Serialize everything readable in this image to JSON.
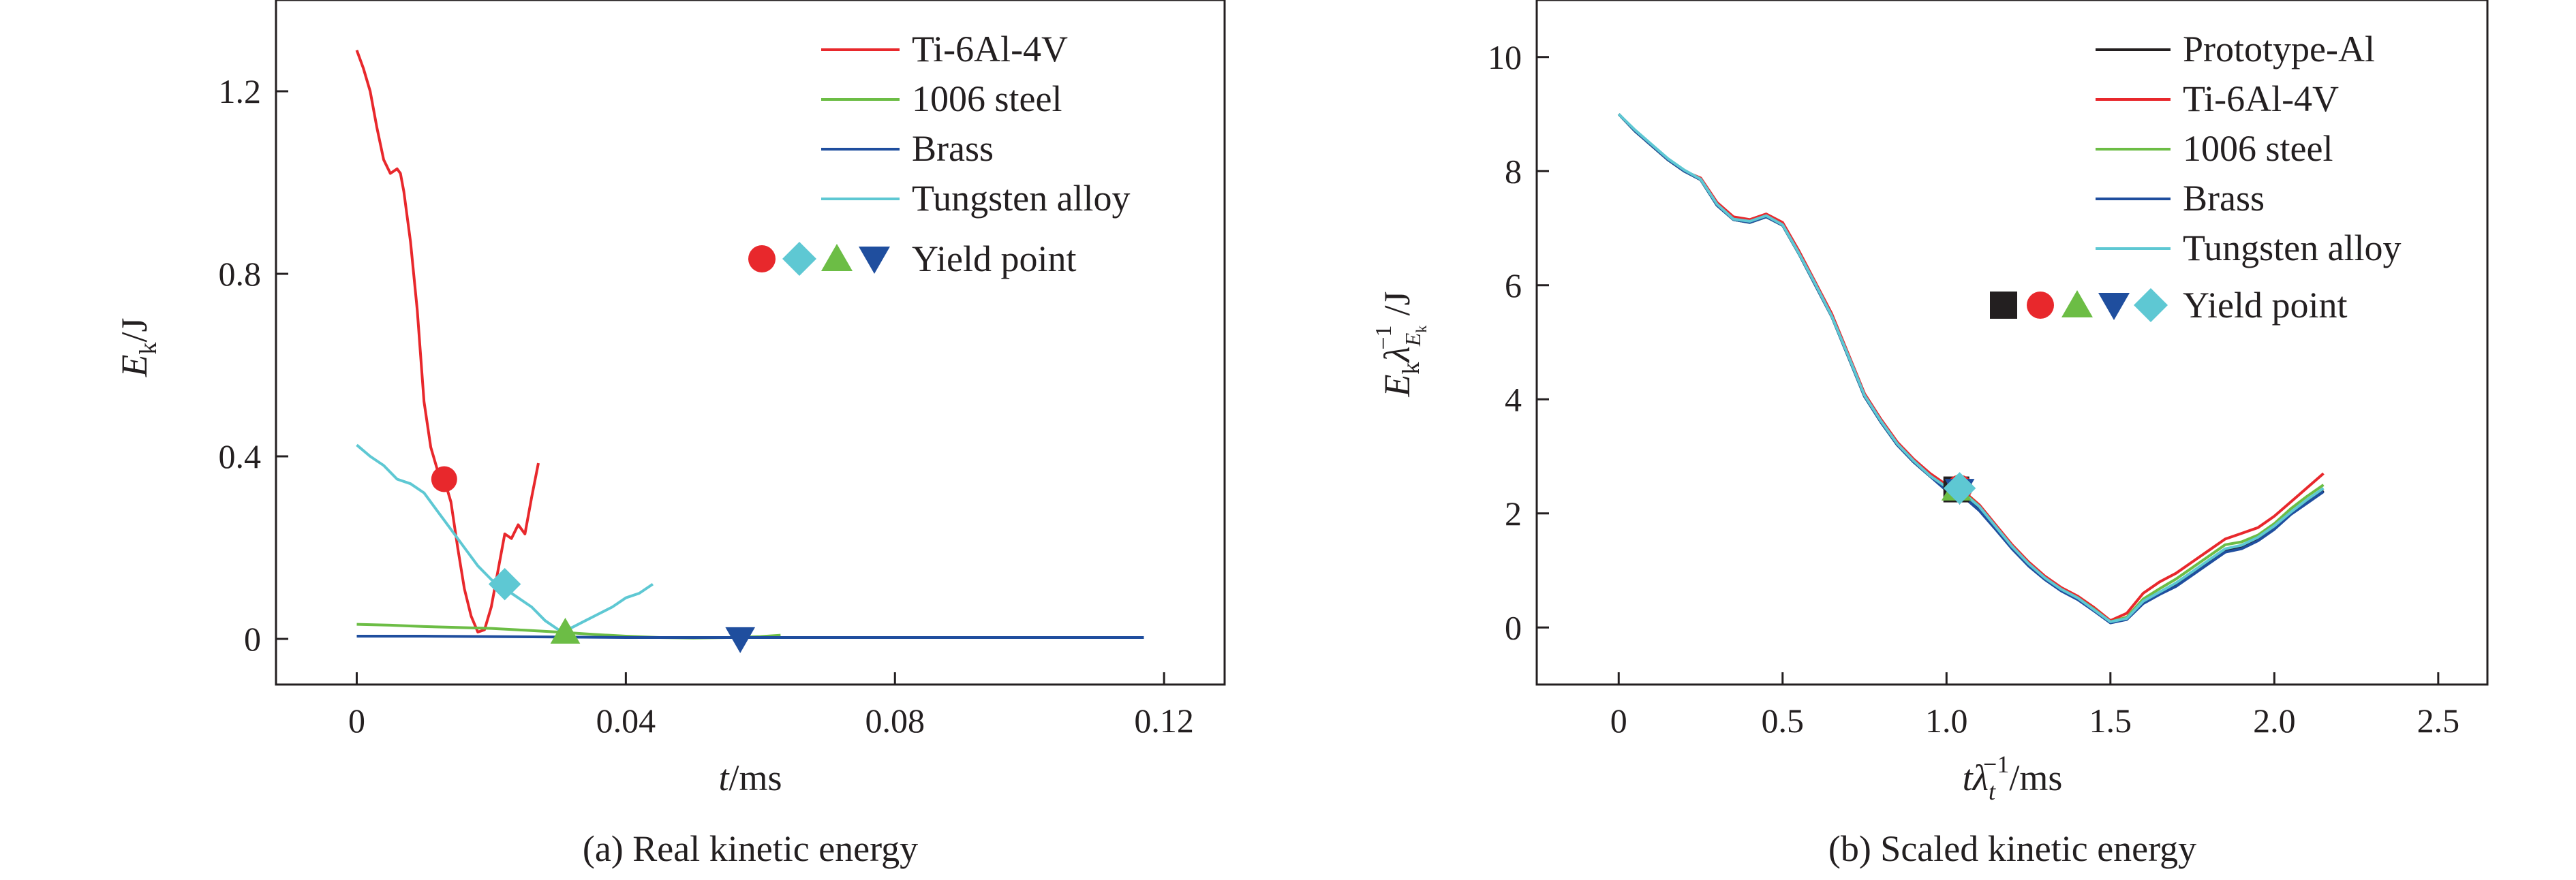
{
  "chart_data": [
    {
      "type": "line",
      "caption": "(a) Real kinetic energy",
      "xlabel": {
        "var": "t",
        "unit": "/ms"
      },
      "ylabel": {
        "var": "E",
        "sub": "k",
        "unit": "/J"
      },
      "xlim": [
        -0.012,
        0.129
      ],
      "ylim": [
        -0.1,
        1.4
      ],
      "xticks": [
        0,
        0.04,
        0.08,
        0.12
      ],
      "xtick_labels": [
        "0",
        "0.04",
        "0.08",
        "0.12"
      ],
      "yticks": [
        0,
        0.4,
        0.8,
        1.2
      ],
      "ytick_labels": [
        "0",
        "0.4",
        "0.8",
        "1.2"
      ],
      "grid": false,
      "legend_position": "top-right",
      "series": [
        {
          "name": "Ti-6Al-4V",
          "color": "#e8282c",
          "x": [
            0.0,
            0.001,
            0.002,
            0.003,
            0.004,
            0.005,
            0.006,
            0.0065,
            0.007,
            0.008,
            0.009,
            0.01,
            0.011,
            0.012,
            0.013,
            0.014,
            0.015,
            0.016,
            0.017,
            0.018,
            0.019,
            0.02,
            0.021,
            0.022,
            0.023,
            0.024,
            0.025,
            0.026,
            0.027
          ],
          "y": [
            1.29,
            1.25,
            1.2,
            1.12,
            1.05,
            1.02,
            1.03,
            1.02,
            0.98,
            0.87,
            0.72,
            0.52,
            0.42,
            0.37,
            0.35,
            0.3,
            0.2,
            0.11,
            0.05,
            0.015,
            0.02,
            0.07,
            0.15,
            0.23,
            0.22,
            0.25,
            0.23,
            0.31,
            0.385
          ]
        },
        {
          "name": "1006 steel",
          "color": "#6cbd45",
          "x": [
            0.0,
            0.005,
            0.01,
            0.015,
            0.02,
            0.025,
            0.03,
            0.035,
            0.04,
            0.045,
            0.05,
            0.055,
            0.06,
            0.063
          ],
          "y": [
            0.032,
            0.03,
            0.027,
            0.025,
            0.023,
            0.019,
            0.015,
            0.01,
            0.006,
            0.003,
            0.002,
            0.003,
            0.005,
            0.008
          ]
        },
        {
          "name": "Brass",
          "color": "#1f4e9e",
          "x": [
            0.0,
            0.01,
            0.02,
            0.03,
            0.04,
            0.05,
            0.06,
            0.07,
            0.08,
            0.09,
            0.1,
            0.117
          ],
          "y": [
            0.006,
            0.006,
            0.005,
            0.004,
            0.003,
            0.003,
            0.003,
            0.003,
            0.003,
            0.003,
            0.003,
            0.003
          ]
        },
        {
          "name": "Tungsten alloy",
          "color": "#5ec8d3",
          "x": [
            0.0,
            0.002,
            0.004,
            0.006,
            0.008,
            0.01,
            0.012,
            0.014,
            0.016,
            0.018,
            0.02,
            0.022,
            0.024,
            0.026,
            0.028,
            0.03,
            0.032,
            0.034,
            0.036,
            0.038,
            0.04,
            0.042,
            0.044
          ],
          "y": [
            0.425,
            0.4,
            0.38,
            0.35,
            0.34,
            0.32,
            0.28,
            0.24,
            0.2,
            0.16,
            0.13,
            0.11,
            0.09,
            0.07,
            0.04,
            0.02,
            0.025,
            0.04,
            0.055,
            0.07,
            0.09,
            0.1,
            0.12
          ]
        }
      ],
      "legend_yield_label": "Yield point",
      "yield_points": [
        {
          "series": "Ti-6Al-4V",
          "marker": "circle",
          "x": 0.013,
          "y": 0.35
        },
        {
          "series": "Tungsten alloy",
          "marker": "diamond",
          "x": 0.022,
          "y": 0.12
        },
        {
          "series": "1006 steel",
          "marker": "triangle-up",
          "x": 0.031,
          "y": 0.015
        },
        {
          "series": "Brass",
          "marker": "triangle-down",
          "x": 0.057,
          "y": 0.0
        }
      ]
    },
    {
      "type": "line",
      "caption": "(b) Scaled kinetic energy",
      "xlabel": {
        "var": "t",
        "lambda": "λ",
        "sub": "t",
        "sup": "−1",
        "unit": "/ms"
      },
      "ylabel": {
        "var": "E",
        "sub": "k",
        "lambda": "λ",
        "lsub": "E",
        "lsubsub": "k",
        "sup": "−1",
        "unit": "/J"
      },
      "xlim": [
        -0.25,
        2.65
      ],
      "ylim": [
        -1.0,
        11.0
      ],
      "xticks": [
        0,
        0.5,
        1.0,
        1.5,
        2.0,
        2.5
      ],
      "xtick_labels": [
        "0",
        "0.5",
        "1.0",
        "1.5",
        "2.0",
        "2.5"
      ],
      "yticks": [
        0,
        2,
        4,
        6,
        8,
        10
      ],
      "ytick_labels": [
        "0",
        "2",
        "4",
        "6",
        "8",
        "10"
      ],
      "grid": false,
      "legend_position": "top-right",
      "series": [
        {
          "name": "Prototype-Al",
          "color": "#231f20",
          "x": [
            0.0,
            0.05,
            0.1,
            0.15,
            0.2,
            0.25,
            0.3,
            0.35,
            0.4,
            0.45,
            0.5,
            0.55,
            0.6,
            0.65,
            0.7,
            0.75,
            0.8,
            0.85,
            0.9,
            0.95,
            1.0,
            1.05,
            1.1,
            1.15,
            1.2,
            1.25,
            1.3,
            1.35,
            1.4,
            1.45,
            1.5,
            1.55,
            1.6,
            1.65,
            1.7,
            1.75,
            1.8,
            1.85,
            1.9,
            1.95,
            2.0,
            2.05,
            2.1,
            2.15
          ],
          "y": [
            9.0,
            8.7,
            8.45,
            8.2,
            8.0,
            7.85,
            7.4,
            7.15,
            7.1,
            7.2,
            7.05,
            6.55,
            6.0,
            5.45,
            4.75,
            4.05,
            3.6,
            3.2,
            2.9,
            2.65,
            2.45,
            2.35,
            2.1,
            1.75,
            1.4,
            1.1,
            0.85,
            0.65,
            0.5,
            0.3,
            0.1,
            0.15,
            0.45,
            0.6,
            0.75,
            0.95,
            1.15,
            1.35,
            1.4,
            1.55,
            1.75,
            2.0,
            2.2,
            2.4
          ]
        },
        {
          "name": "Ti-6Al-4V",
          "color": "#e8282c",
          "x": [
            0.0,
            0.05,
            0.1,
            0.15,
            0.2,
            0.25,
            0.3,
            0.35,
            0.4,
            0.45,
            0.5,
            0.55,
            0.6,
            0.65,
            0.7,
            0.75,
            0.8,
            0.85,
            0.9,
            0.95,
            1.0,
            1.05,
            1.1,
            1.15,
            1.2,
            1.25,
            1.3,
            1.35,
            1.4,
            1.45,
            1.5,
            1.55,
            1.6,
            1.65,
            1.7,
            1.75,
            1.8,
            1.85,
            1.9,
            1.95,
            2.0,
            2.05,
            2.1,
            2.15
          ],
          "y": [
            9.0,
            8.7,
            8.45,
            8.2,
            8.0,
            7.88,
            7.45,
            7.2,
            7.15,
            7.25,
            7.1,
            6.6,
            6.05,
            5.5,
            4.8,
            4.1,
            3.65,
            3.25,
            2.95,
            2.7,
            2.5,
            2.4,
            2.15,
            1.8,
            1.45,
            1.15,
            0.9,
            0.7,
            0.55,
            0.35,
            0.12,
            0.25,
            0.6,
            0.8,
            0.95,
            1.15,
            1.35,
            1.55,
            1.65,
            1.75,
            1.95,
            2.2,
            2.45,
            2.7
          ]
        },
        {
          "name": "1006 steel",
          "color": "#6cbd45",
          "x": [
            0.0,
            0.05,
            0.1,
            0.15,
            0.2,
            0.25,
            0.3,
            0.35,
            0.4,
            0.45,
            0.5,
            0.55,
            0.6,
            0.65,
            0.7,
            0.75,
            0.8,
            0.85,
            0.9,
            0.95,
            1.0,
            1.05,
            1.1,
            1.15,
            1.2,
            1.25,
            1.3,
            1.35,
            1.4,
            1.45,
            1.5,
            1.55,
            1.6,
            1.65,
            1.7,
            1.75,
            1.8,
            1.85,
            1.9,
            1.95,
            2.0,
            2.05,
            2.1,
            2.15
          ],
          "y": [
            9.0,
            8.7,
            8.45,
            8.2,
            8.0,
            7.85,
            7.4,
            7.15,
            7.1,
            7.2,
            7.05,
            6.55,
            6.0,
            5.45,
            4.75,
            4.05,
            3.6,
            3.2,
            2.9,
            2.65,
            2.45,
            2.38,
            2.12,
            1.77,
            1.42,
            1.12,
            0.87,
            0.67,
            0.52,
            0.32,
            0.1,
            0.18,
            0.5,
            0.68,
            0.85,
            1.05,
            1.25,
            1.45,
            1.5,
            1.62,
            1.82,
            2.08,
            2.3,
            2.5
          ]
        },
        {
          "name": "Brass",
          "color": "#1f4e9e",
          "x": [
            0.0,
            0.05,
            0.1,
            0.15,
            0.2,
            0.25,
            0.3,
            0.35,
            0.4,
            0.45,
            0.5,
            0.55,
            0.6,
            0.65,
            0.7,
            0.75,
            0.8,
            0.85,
            0.9,
            0.95,
            1.0,
            1.05,
            1.1,
            1.15,
            1.2,
            1.25,
            1.3,
            1.35,
            1.4,
            1.45,
            1.5,
            1.55,
            1.6,
            1.65,
            1.7,
            1.75,
            1.8,
            1.85,
            1.9,
            1.95,
            2.0,
            2.05,
            2.1,
            2.15
          ],
          "y": [
            9.0,
            8.7,
            8.45,
            8.2,
            8.0,
            7.85,
            7.4,
            7.15,
            7.1,
            7.2,
            7.05,
            6.55,
            6.0,
            5.45,
            4.75,
            4.05,
            3.6,
            3.2,
            2.9,
            2.65,
            2.4,
            2.3,
            2.05,
            1.72,
            1.38,
            1.08,
            0.84,
            0.64,
            0.49,
            0.29,
            0.08,
            0.14,
            0.42,
            0.58,
            0.72,
            0.92,
            1.12,
            1.32,
            1.38,
            1.52,
            1.72,
            1.98,
            2.18,
            2.38
          ]
        },
        {
          "name": "Tungsten alloy",
          "color": "#5ec8d3",
          "x": [
            0.0,
            0.05,
            0.1,
            0.15,
            0.2,
            0.25,
            0.3,
            0.35,
            0.4,
            0.45,
            0.5,
            0.55,
            0.6,
            0.65,
            0.7,
            0.75,
            0.8,
            0.85,
            0.9,
            0.95,
            1.0,
            1.05,
            1.1,
            1.15,
            1.2,
            1.25,
            1.3,
            1.35,
            1.4,
            1.45,
            1.5,
            1.55,
            1.6,
            1.65,
            1.7,
            1.75,
            1.8,
            1.85,
            1.9,
            1.95,
            2.0,
            2.05,
            2.1,
            2.15
          ],
          "y": [
            9.0,
            8.72,
            8.47,
            8.22,
            8.02,
            7.86,
            7.42,
            7.16,
            7.12,
            7.22,
            7.06,
            6.56,
            6.02,
            5.46,
            4.77,
            4.07,
            3.62,
            3.22,
            2.92,
            2.66,
            2.46,
            2.36,
            2.12,
            1.77,
            1.42,
            1.12,
            0.87,
            0.67,
            0.52,
            0.31,
            0.1,
            0.16,
            0.46,
            0.62,
            0.78,
            0.98,
            1.18,
            1.38,
            1.44,
            1.58,
            1.78,
            2.02,
            2.24,
            2.44
          ]
        }
      ],
      "legend_yield_label": "Yield point",
      "yield_points": [
        {
          "series": "Prototype-Al",
          "marker": "square",
          "x": 1.03,
          "y": 2.42
        },
        {
          "series": "Ti-6Al-4V",
          "marker": "circle",
          "x": 1.04,
          "y": 2.45
        },
        {
          "series": "1006 steel",
          "marker": "triangle-up",
          "x": 1.03,
          "y": 2.43
        },
        {
          "series": "Brass",
          "marker": "triangle-down",
          "x": 1.04,
          "y": 2.4
        },
        {
          "series": "Tungsten alloy",
          "marker": "diamond",
          "x": 1.04,
          "y": 2.44
        }
      ]
    }
  ]
}
